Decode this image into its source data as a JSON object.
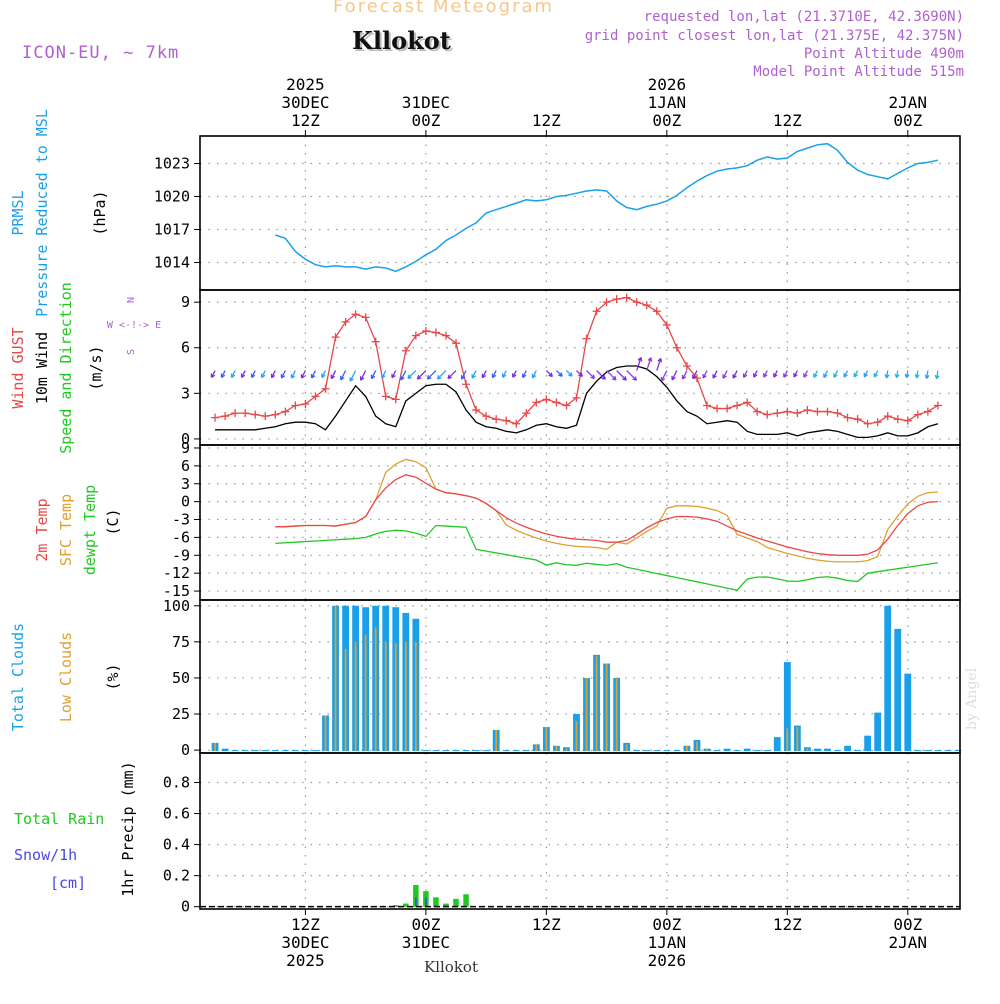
{
  "header": {
    "product": "Forecast Meteogram",
    "station": "Kllokot",
    "model": "ICON-EU, ~ 7km",
    "meta": [
      "requested lon,lat (21.3710E, 42.3690N)",
      "grid point closest lon,lat (21.375E, 42.375N)",
      "Point Altitude 490m",
      "Model Point Altitude 515m"
    ]
  },
  "footer": {
    "station": "Kllokot",
    "watermark": "by Angel"
  },
  "colors": {
    "pressure": "#1aa0e8",
    "gust": "#e84848",
    "wind": "#000000",
    "temp2m": "#e84848",
    "sfctemp": "#e0a030",
    "dewpt": "#22c822",
    "cloud_total": "#1aa0e8",
    "cloud_low": "#e0a030",
    "rain": "#22c822",
    "snow": "#4848e8",
    "purple": "#b060d0"
  },
  "chart_data": [
    {
      "id": "pressure",
      "type": "line",
      "title": "PRMSL Pressure Reduced to MSL",
      "ylabels": [
        "PRMSL",
        "Pressure Reduced to MSL",
        "(hPa)"
      ],
      "ylim": [
        1011.5,
        1025.5
      ],
      "yticks": [
        1014,
        1017,
        1020,
        1023
      ],
      "x": [
        -3,
        -2,
        -1,
        0,
        1,
        2,
        3,
        4,
        5,
        6,
        7,
        8,
        9,
        10,
        11,
        12,
        13,
        14,
        15,
        16,
        17,
        18,
        19,
        20,
        21,
        22,
        23,
        24,
        25,
        26,
        27,
        28,
        29,
        30,
        31,
        32,
        33,
        34,
        35,
        36,
        37,
        38,
        39,
        40,
        41,
        42,
        43,
        44,
        45,
        46,
        47,
        48,
        49,
        50,
        51,
        52,
        53,
        54,
        55,
        56,
        57,
        58,
        59,
        60,
        61,
        62,
        63
      ],
      "values": [
        1016.5,
        1016.2,
        1015.0,
        1014.3,
        1013.8,
        1013.6,
        1013.7,
        1013.6,
        1013.6,
        1013.4,
        1013.6,
        1013.5,
        1013.2,
        1013.6,
        1014.1,
        1014.7,
        1015.2,
        1016.0,
        1016.5,
        1017.1,
        1017.6,
        1018.5,
        1018.8,
        1019.1,
        1019.4,
        1019.7,
        1019.6,
        1019.7,
        1020.0,
        1020.1,
        1020.3,
        1020.5,
        1020.6,
        1020.5,
        1019.6,
        1019.0,
        1018.8,
        1019.1,
        1019.3,
        1019.6,
        1020.1,
        1020.8,
        1021.4,
        1021.9,
        1022.3,
        1022.5,
        1022.6,
        1022.8,
        1023.3,
        1023.6,
        1023.4,
        1023.5,
        1024.1,
        1024.4,
        1024.7,
        1024.8,
        1024.2,
        1023.1,
        1022.4,
        1022.0,
        1021.8,
        1021.6,
        1022.1,
        1022.6,
        1023.0,
        1023.1,
        1023.3
      ]
    },
    {
      "id": "wind",
      "type": "line",
      "title": "Wind GUST / 10m Wind Speed and Direction",
      "ylabels": [
        "Wind GUST",
        "10m Wind",
        "Speed and Direction",
        "(m/s)"
      ],
      "compass": [
        "N",
        "W <-!-> E",
        "S"
      ],
      "ylim": [
        -0.4,
        9.8
      ],
      "yticks": [
        0,
        3,
        6,
        9
      ],
      "x": [
        -9,
        -8,
        -7,
        -6,
        -5,
        -4,
        -3,
        -2,
        -1,
        0,
        1,
        2,
        3,
        4,
        5,
        6,
        7,
        8,
        9,
        10,
        11,
        12,
        13,
        14,
        15,
        16,
        17,
        18,
        19,
        20,
        21,
        22,
        23,
        24,
        25,
        26,
        27,
        28,
        29,
        30,
        31,
        32,
        33,
        34,
        35,
        36,
        37,
        38,
        39,
        40,
        41,
        42,
        43,
        44,
        45,
        46,
        47,
        48,
        49,
        50,
        51,
        52,
        53,
        54,
        55,
        56,
        57,
        58,
        59,
        60,
        61,
        62,
        63
      ],
      "gust": [
        1.4,
        1.5,
        1.7,
        1.7,
        1.6,
        1.5,
        1.6,
        1.8,
        2.2,
        2.3,
        2.8,
        3.3,
        6.7,
        7.7,
        8.2,
        8.0,
        6.4,
        2.8,
        2.6,
        5.8,
        6.8,
        7.1,
        7.0,
        6.8,
        6.3,
        3.6,
        1.9,
        1.5,
        1.3,
        1.2,
        1.0,
        1.7,
        2.4,
        2.6,
        2.4,
        2.2,
        2.7,
        6.6,
        8.4,
        9.0,
        9.2,
        9.3,
        9.0,
        8.8,
        8.4,
        7.5,
        6.0,
        4.8,
        4.0,
        2.2,
        2.0,
        2.0,
        2.2,
        2.4,
        1.8,
        1.6,
        1.7,
        1.8,
        1.7,
        1.9,
        1.8,
        1.8,
        1.7,
        1.4,
        1.3,
        1.0,
        1.1,
        1.5,
        1.3,
        1.2,
        1.6,
        1.8,
        2.2
      ],
      "speed": [
        0.6,
        0.6,
        0.6,
        0.6,
        0.6,
        0.7,
        0.8,
        1.0,
        1.1,
        1.1,
        1.0,
        0.6,
        1.5,
        2.5,
        3.5,
        2.8,
        1.5,
        1.0,
        0.8,
        2.5,
        3.0,
        3.5,
        3.6,
        3.6,
        3.1,
        1.9,
        1.1,
        0.8,
        0.7,
        0.5,
        0.4,
        0.6,
        0.9,
        1.0,
        0.8,
        0.7,
        0.9,
        3.0,
        3.8,
        4.4,
        4.7,
        4.8,
        4.8,
        4.6,
        4.1,
        3.4,
        2.5,
        1.8,
        1.5,
        1.0,
        1.1,
        1.2,
        1.1,
        0.5,
        0.3,
        0.3,
        0.3,
        0.4,
        0.2,
        0.4,
        0.5,
        0.6,
        0.5,
        0.3,
        0.1,
        0.1,
        0.2,
        0.4,
        0.2,
        0.2,
        0.4,
        0.8,
        1.0
      ]
    },
    {
      "id": "temperature",
      "type": "line",
      "title": "2m Temp / SFC Temp / dewpt Temp",
      "ylabels": [
        "2m Temp",
        "SFC Temp",
        "dewpt Temp",
        "(C)"
      ],
      "ylim": [
        -16.5,
        9.5
      ],
      "yticks": [
        -15,
        -12,
        -9,
        -6,
        -3,
        0,
        3,
        6,
        9
      ],
      "x": [
        -3,
        -2,
        -1,
        0,
        1,
        2,
        3,
        4,
        5,
        6,
        7,
        8,
        9,
        10,
        11,
        12,
        13,
        14,
        15,
        16,
        17,
        18,
        19,
        20,
        21,
        22,
        23,
        24,
        25,
        26,
        27,
        28,
        29,
        30,
        31,
        32,
        33,
        34,
        35,
        36,
        37,
        38,
        39,
        40,
        41,
        42,
        43,
        44,
        45,
        46,
        47,
        48,
        49,
        50,
        51,
        52,
        53,
        54,
        55,
        56,
        57,
        58,
        59,
        60,
        61,
        62,
        63
      ],
      "temp2m": [
        -4.2,
        -4.2,
        -4.1,
        -4.0,
        -4.0,
        -4.0,
        -4.1,
        -3.8,
        -3.5,
        -2.5,
        0.3,
        2.3,
        3.7,
        4.5,
        4.1,
        3.1,
        2.1,
        1.5,
        1.3,
        1.0,
        0.6,
        -0.3,
        -1.5,
        -2.7,
        -3.6,
        -4.3,
        -4.9,
        -5.4,
        -5.8,
        -6.1,
        -6.3,
        -6.4,
        -6.5,
        -6.8,
        -6.8,
        -6.5,
        -5.5,
        -4.4,
        -3.5,
        -2.9,
        -2.5,
        -2.5,
        -2.6,
        -2.9,
        -3.3,
        -4.1,
        -4.9,
        -5.5,
        -6.1,
        -6.6,
        -7.1,
        -7.6,
        -8.0,
        -8.4,
        -8.7,
        -8.9,
        -9.0,
        -9.0,
        -9.0,
        -8.8,
        -8.1,
        -6.3,
        -4.0,
        -2.0,
        -0.7,
        -0.1,
        0.0
      ]
    },
    {
      "id": "clouds",
      "type": "bar",
      "title": "Total Clouds / Low Clouds",
      "ylabels": [
        "Total Clouds",
        "Low Clouds",
        "(%)"
      ],
      "ylim": [
        -2,
        104
      ],
      "yticks": [
        0,
        25,
        50,
        75,
        100
      ],
      "x": [
        -9,
        -8,
        -7,
        -6,
        -5,
        -4,
        -3,
        -2,
        -1,
        0,
        1,
        2,
        3,
        4,
        5,
        6,
        7,
        8,
        9,
        10,
        11,
        12,
        13,
        14,
        15,
        16,
        17,
        18,
        19,
        20,
        21,
        22,
        23,
        24,
        25,
        26,
        27,
        28,
        29,
        30,
        31,
        32,
        33,
        34,
        35,
        36,
        37,
        38,
        39,
        40,
        41,
        42,
        43,
        44,
        45,
        46,
        47,
        48,
        49,
        50,
        51,
        52,
        53,
        54,
        55,
        56,
        57,
        58,
        59,
        60,
        61,
        62,
        63,
        64,
        65
      ],
      "total": [
        5,
        1,
        0,
        0,
        0,
        0,
        0,
        0,
        0,
        0,
        0,
        24,
        100,
        100,
        100,
        99,
        100,
        100,
        99,
        95,
        91,
        0,
        0,
        0,
        0,
        0,
        0,
        0,
        14,
        0,
        0,
        0,
        4,
        16,
        3,
        2,
        25,
        50,
        66,
        60,
        50,
        5,
        0,
        0,
        0,
        0,
        0,
        3,
        7,
        1,
        0,
        1,
        0,
        1,
        0,
        0,
        9,
        61,
        17,
        2,
        1,
        1,
        0,
        3,
        0,
        10,
        26,
        100,
        84,
        53,
        0,
        0,
        0,
        0,
        0
      ],
      "low": [
        5,
        0,
        0,
        0,
        0,
        0,
        0,
        0,
        0,
        0,
        0,
        24,
        100,
        70,
        75,
        80,
        85,
        75,
        74,
        75,
        75,
        0,
        0,
        0,
        0,
        0,
        0,
        0,
        14,
        0,
        0,
        0,
        4,
        16,
        3,
        1,
        20,
        50,
        65,
        60,
        50,
        4,
        0,
        0,
        0,
        0,
        0,
        3,
        6,
        1,
        0,
        0,
        0,
        0,
        0,
        0,
        0,
        15,
        16,
        1,
        0,
        0,
        0,
        0,
        0,
        0,
        0,
        0,
        0,
        0,
        0,
        0,
        0,
        0,
        0
      ]
    },
    {
      "id": "precip",
      "type": "bar",
      "title": "1hr Precip",
      "ylabels": [
        "Total Rain",
        "Snow/1h",
        "[cm]",
        "1hr Precip (mm)"
      ],
      "ylim": [
        -0.015,
        0.99
      ],
      "yticks": [
        0,
        0.2,
        0.4,
        0.6,
        0.8
      ],
      "ytick_labels": [
        "0",
        "0.2",
        "0.4",
        "0.6",
        "0.8"
      ],
      "x": [
        9,
        10,
        11,
        12,
        13,
        14,
        15,
        16
      ],
      "rain": [
        0.01,
        0.02,
        0.14,
        0.1,
        0.06,
        0.02,
        0.05,
        0.08
      ],
      "snow": [
        0.0,
        0.0,
        0.06,
        0.06,
        0.0,
        0.0,
        0.0,
        0.0
      ]
    }
  ],
  "time_axis": {
    "top_labels": [
      {
        "x": 0,
        "lines": [
          "2025",
          "30DEC",
          "12Z"
        ]
      },
      {
        "x": 12,
        "lines": [
          "31DEC",
          "00Z"
        ]
      },
      {
        "x": 24,
        "lines": [
          "12Z"
        ]
      },
      {
        "x": 36,
        "lines": [
          "2026",
          "1JAN",
          "00Z"
        ]
      },
      {
        "x": 48,
        "lines": [
          "12Z"
        ]
      },
      {
        "x": 60,
        "lines": [
          "2JAN",
          "00Z"
        ]
      }
    ],
    "bottom_labels": [
      {
        "x": 0,
        "lines": [
          "12Z",
          "30DEC",
          "2025"
        ]
      },
      {
        "x": 12,
        "lines": [
          "00Z",
          "31DEC"
        ]
      },
      {
        "x": 24,
        "lines": [
          "12Z"
        ]
      },
      {
        "x": 36,
        "lines": [
          "00Z",
          "1JAN",
          "2026"
        ]
      },
      {
        "x": 48,
        "lines": [
          "12Z"
        ]
      },
      {
        "x": 60,
        "lines": [
          "00Z",
          "2JAN"
        ]
      }
    ]
  }
}
